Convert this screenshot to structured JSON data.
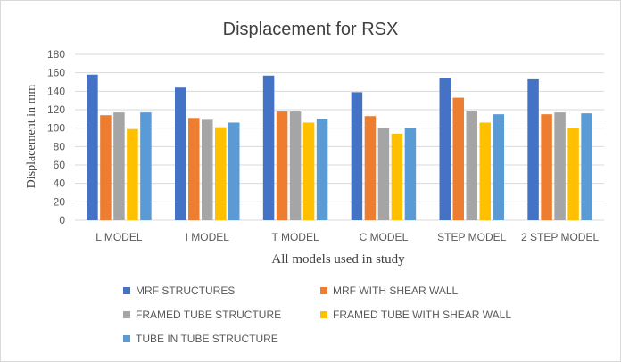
{
  "chart_data": {
    "type": "bar",
    "title": "Displacement for RSX",
    "xlabel": "All models used in study",
    "ylabel": "Displacement  in mm",
    "ylim": [
      0,
      180
    ],
    "yticks": [
      0,
      20,
      40,
      60,
      80,
      100,
      120,
      140,
      160,
      180
    ],
    "categories": [
      "L MODEL",
      "I MODEL",
      "T MODEL",
      "C MODEL",
      "STEP MODEL",
      "2 STEP MODEL"
    ],
    "series": [
      {
        "name": "MRF STRUCTURES",
        "color": "#4472C4",
        "values": [
          158,
          144,
          157,
          139,
          154,
          153
        ]
      },
      {
        "name": "MRF WITH SHEAR WALL",
        "color": "#ED7D31",
        "values": [
          114,
          111,
          118,
          113,
          133,
          115
        ]
      },
      {
        "name": "FRAMED TUBE STRUCTURE",
        "color": "#A5A5A5",
        "values": [
          117,
          109,
          118,
          100,
          119,
          117
        ]
      },
      {
        "name": "FRAMED TUBE WITH SHEAR WALL",
        "color": "#FFC000",
        "values": [
          99,
          101,
          106,
          94,
          106,
          100
        ]
      },
      {
        "name": "TUBE IN TUBE STRUCTURE",
        "color": "#5B9BD5",
        "values": [
          117,
          106,
          110,
          100,
          115,
          116
        ]
      }
    ],
    "legend_position": "bottom",
    "grid": true
  },
  "colors": {
    "gridline": "#d9d9d9",
    "text": "#595959",
    "title": "#404040"
  }
}
